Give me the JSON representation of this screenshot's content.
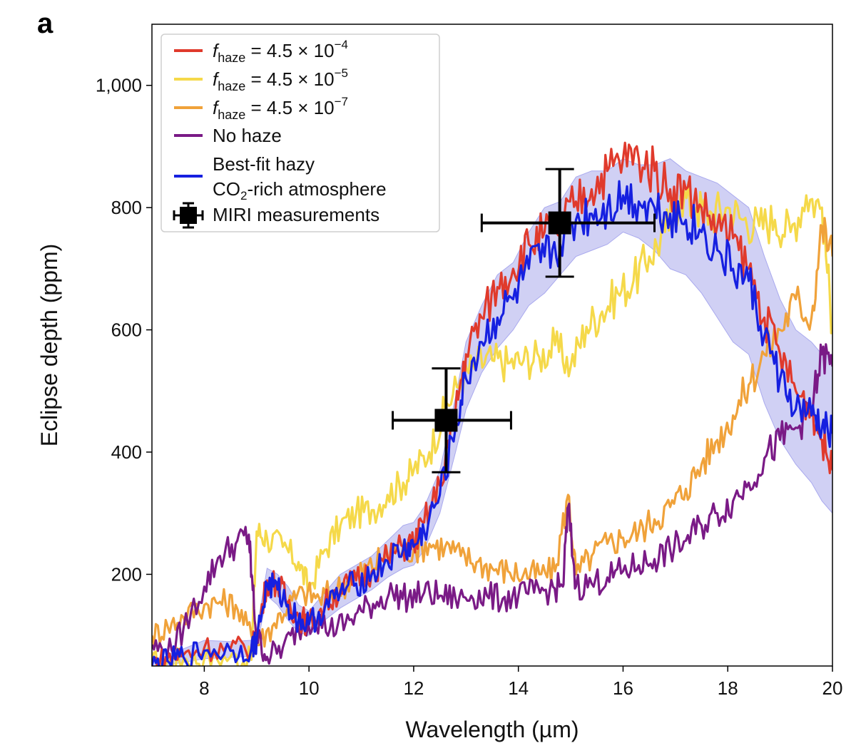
{
  "panel_label": "a",
  "chart_data": {
    "type": "line",
    "xlabel": "Wavelength (µm)",
    "ylabel": "Eclipse depth (ppm)",
    "xlim": [
      7,
      20
    ],
    "ylim": [
      50,
      1100
    ],
    "xticks": [
      8,
      10,
      12,
      14,
      16,
      18,
      20
    ],
    "xtick_labels": [
      "8",
      "10",
      "12",
      "14",
      "16",
      "18",
      "20"
    ],
    "yticks": [
      200,
      400,
      600,
      800,
      1000
    ],
    "ytick_labels": [
      "200",
      "400",
      "600",
      "800",
      "1,000"
    ],
    "grid": false,
    "legend_position": "top-left",
    "legend": [
      {
        "text": "fhaze = 4.5 × 10−4",
        "color": "#e03a2c"
      },
      {
        "text": "fhaze = 4.5 × 10−5",
        "color": "#f5d94a"
      },
      {
        "text": "fhaze = 4.5 × 10−7",
        "color": "#f0a23a"
      },
      {
        "text": "No haze",
        "color": "#7a1a86"
      },
      {
        "text": "Best-fit hazy CO2-rich atmosphere",
        "color": "#1620e0"
      },
      {
        "text": "MIRI measurements",
        "color": "#000000"
      }
    ],
    "legend_parts": {
      "f": "f",
      "haze": "haze",
      "eq_base": " = 4.5 × 10",
      "exp1": "−4",
      "exp2": "−5",
      "exp3": "−7",
      "nohaze": "No haze",
      "best1": "Best-fit hazy",
      "best2a": "CO",
      "best2sub": "2",
      "best2b": "-rich atmosphere",
      "miri": "MIRI measurements"
    },
    "series": [
      {
        "name": "fhaze = 4.5 × 10−4",
        "color": "#e03a2c",
        "x": [
          7.0,
          7.3,
          7.6,
          8.0,
          8.5,
          8.9,
          9.0,
          9.2,
          9.4,
          9.6,
          9.8,
          10.0,
          10.3,
          10.6,
          10.9,
          11.2,
          11.5,
          11.8,
          12.0,
          12.2,
          12.5,
          12.8,
          13.0,
          13.3,
          13.6,
          13.9,
          14.2,
          14.5,
          14.8,
          15.1,
          15.4,
          15.7,
          16.0,
          16.3,
          16.6,
          16.9,
          17.2,
          17.5,
          17.8,
          18.1,
          18.4,
          18.7,
          19.0,
          19.3,
          19.6,
          19.8,
          20.0
        ],
        "y": [
          55,
          62,
          68,
          80,
          78,
          80,
          95,
          190,
          185,
          155,
          130,
          120,
          150,
          175,
          190,
          205,
          228,
          245,
          250,
          285,
          345,
          470,
          560,
          620,
          670,
          700,
          740,
          760,
          770,
          810,
          830,
          860,
          880,
          880,
          860,
          830,
          830,
          800,
          770,
          750,
          700,
          620,
          560,
          500,
          470,
          420,
          370
        ]
      },
      {
        "name": "fhaze = 4.5 × 10−5",
        "color": "#f5d94a",
        "x": [
          7.0,
          7.3,
          7.6,
          8.0,
          8.5,
          8.9,
          9.0,
          9.2,
          9.5,
          9.8,
          10.0,
          10.3,
          10.6,
          10.9,
          11.2,
          11.5,
          11.8,
          12.0,
          12.3,
          12.6,
          12.9,
          13.2,
          13.5,
          13.8,
          14.1,
          14.4,
          14.7,
          15.0,
          15.3,
          15.6,
          15.9,
          16.2,
          16.5,
          16.8,
          17.1,
          17.4,
          17.7,
          18.0,
          18.3,
          18.6,
          18.9,
          19.2,
          19.5,
          19.8,
          20.0
        ],
        "y": [
          55,
          58,
          62,
          62,
          65,
          60,
          270,
          260,
          245,
          220,
          175,
          240,
          280,
          300,
          305,
          330,
          350,
          370,
          400,
          470,
          520,
          545,
          550,
          545,
          550,
          555,
          575,
          540,
          605,
          630,
          660,
          680,
          720,
          760,
          820,
          800,
          790,
          800,
          780,
          770,
          780,
          760,
          820,
          800,
          600
        ]
      },
      {
        "name": "fhaze = 4.5 × 10−7",
        "color": "#f0a23a",
        "x": [
          7.0,
          7.3,
          7.6,
          8.0,
          8.3,
          8.6,
          8.9,
          9.0,
          9.3,
          9.6,
          9.9,
          10.2,
          10.5,
          10.8,
          11.1,
          11.4,
          11.7,
          12.0,
          12.3,
          12.6,
          12.9,
          13.2,
          13.5,
          13.8,
          14.1,
          14.4,
          14.7,
          14.95,
          15.1,
          15.4,
          15.7,
          16.0,
          16.3,
          16.6,
          16.9,
          17.2,
          17.5,
          17.8,
          18.1,
          18.4,
          18.7,
          19.0,
          19.3,
          19.6,
          19.8,
          20.0
        ],
        "y": [
          100,
          115,
          130,
          150,
          155,
          150,
          100,
          85,
          115,
          150,
          170,
          160,
          175,
          190,
          210,
          225,
          240,
          240,
          250,
          245,
          230,
          220,
          210,
          205,
          200,
          200,
          205,
          330,
          200,
          230,
          250,
          260,
          270,
          290,
          310,
          340,
          380,
          420,
          460,
          510,
          560,
          600,
          650,
          620,
          770,
          720
        ]
      },
      {
        "name": "No haze",
        "color": "#7a1a86",
        "x": [
          7.0,
          7.3,
          7.6,
          8.0,
          8.3,
          8.6,
          8.85,
          8.9,
          9.0,
          9.2,
          9.5,
          9.8,
          10.1,
          10.4,
          10.7,
          11.0,
          11.3,
          11.6,
          11.9,
          12.2,
          12.5,
          12.8,
          13.1,
          13.4,
          13.7,
          14.0,
          14.3,
          14.6,
          14.85,
          14.95,
          15.1,
          15.4,
          15.7,
          16.0,
          16.3,
          16.6,
          16.9,
          17.2,
          17.5,
          17.8,
          18.1,
          18.4,
          18.7,
          19.0,
          19.3,
          19.6,
          19.8,
          20.0
        ],
        "y": [
          85,
          70,
          110,
          180,
          230,
          250,
          265,
          200,
          100,
          65,
          80,
          110,
          130,
          110,
          120,
          140,
          155,
          170,
          160,
          170,
          165,
          160,
          165,
          165,
          160,
          165,
          170,
          175,
          180,
          310,
          180,
          185,
          195,
          205,
          215,
          225,
          240,
          255,
          280,
          300,
          320,
          350,
          390,
          420,
          440,
          470,
          560,
          540
        ]
      },
      {
        "name": "Best-fit hazy CO2-rich atmosphere",
        "color": "#1620e0",
        "x": [
          7.0,
          7.3,
          7.6,
          8.0,
          8.5,
          8.9,
          9.0,
          9.2,
          9.4,
          9.6,
          9.8,
          10.0,
          10.3,
          10.6,
          10.9,
          11.2,
          11.5,
          11.8,
          12.0,
          12.2,
          12.5,
          12.8,
          13.0,
          13.3,
          13.6,
          13.9,
          14.2,
          14.5,
          14.8,
          15.1,
          15.4,
          15.7,
          16.0,
          16.3,
          16.6,
          16.9,
          17.2,
          17.5,
          17.8,
          18.1,
          18.4,
          18.7,
          19.0,
          19.3,
          19.6,
          19.8,
          20.0
        ],
        "y": [
          50,
          58,
          65,
          75,
          75,
          78,
          92,
          185,
          175,
          150,
          125,
          118,
          145,
          170,
          185,
          200,
          222,
          240,
          245,
          270,
          330,
          440,
          520,
          580,
          620,
          650,
          700,
          720,
          740,
          780,
          790,
          800,
          820,
          810,
          800,
          790,
          780,
          760,
          730,
          700,
          680,
          590,
          520,
          470,
          460,
          440,
          430
        ]
      }
    ],
    "uncertainty_band": {
      "series": "Best-fit hazy CO2-rich atmosphere",
      "color": "#c8c8f2",
      "x": [
        7.0,
        7.3,
        7.6,
        8.0,
        8.5,
        8.9,
        9.0,
        9.2,
        9.4,
        9.6,
        9.8,
        10.0,
        10.3,
        10.6,
        10.9,
        11.2,
        11.5,
        11.8,
        12.0,
        12.2,
        12.5,
        12.8,
        13.0,
        13.3,
        13.6,
        13.9,
        14.2,
        14.5,
        14.8,
        15.1,
        15.4,
        15.7,
        16.0,
        16.3,
        16.6,
        16.9,
        17.2,
        17.5,
        17.8,
        18.1,
        18.4,
        18.7,
        19.0,
        19.3,
        19.6,
        19.8,
        20.0
      ],
      "lower": [
        48,
        52,
        56,
        62,
        64,
        66,
        80,
        165,
        150,
        125,
        105,
        100,
        125,
        145,
        160,
        175,
        195,
        210,
        215,
        240,
        300,
        400,
        470,
        530,
        570,
        600,
        640,
        660,
        690,
        720,
        730,
        740,
        760,
        750,
        730,
        700,
        690,
        660,
        620,
        580,
        560,
        480,
        420,
        380,
        350,
        320,
        300
      ],
      "upper": [
        55,
        68,
        78,
        92,
        90,
        92,
        108,
        210,
        200,
        180,
        150,
        140,
        170,
        200,
        215,
        230,
        255,
        280,
        285,
        310,
        370,
        490,
        580,
        640,
        690,
        710,
        760,
        800,
        810,
        850,
        860,
        860,
        880,
        870,
        870,
        880,
        860,
        850,
        840,
        820,
        800,
        720,
        650,
        600,
        580,
        560,
        560
      ]
    },
    "measurements": {
      "name": "MIRI measurements",
      "color": "#000000",
      "points": [
        {
          "x": 12.62,
          "y": 452,
          "xerr_low": 1.02,
          "xerr_high": 1.24,
          "yerr_low": 85,
          "yerr_high": 85
        },
        {
          "x": 14.79,
          "y": 775,
          "xerr_low": 1.49,
          "xerr_high": 1.81,
          "yerr_low": 88,
          "yerr_high": 88
        }
      ]
    }
  }
}
